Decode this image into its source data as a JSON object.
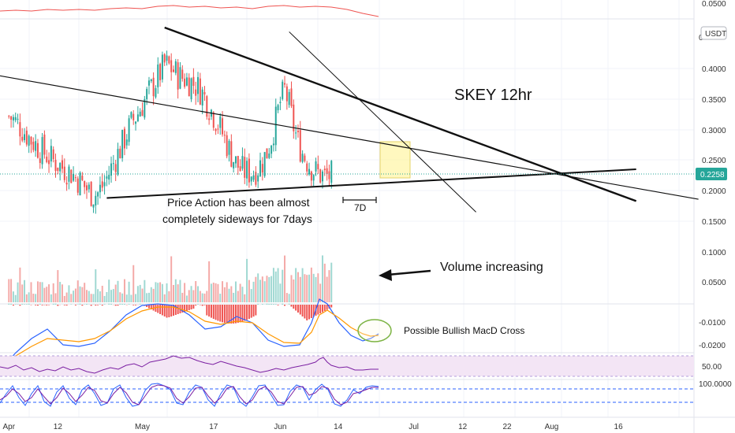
{
  "chart_data": {
    "type": "candlestick",
    "symbol_title": "SKEY 12hr",
    "currency_badge": "USDT",
    "current_price_label": "0.2258",
    "colors": {
      "up": "#26a69a",
      "down": "#ef5350",
      "volume_up": "#9fd8d2",
      "volume_down": "#f4a9a7",
      "macd": "#2962ff",
      "signal": "#ff9800",
      "rsi": "#7b1fa2",
      "rsi_band": "#f3e5f5",
      "stoch_k": "#2962ff",
      "stoch_d": "#7b1fa2",
      "box_fill": "#fff59d",
      "circle": "#7cb342",
      "price_badge": "#26a69a"
    },
    "price_axis": {
      "ticks": [
        "0.4000",
        "0.3500",
        "0.3000",
        "0.2500",
        "0.2000",
        "0.1500"
      ],
      "tick_values": [
        0.4,
        0.35,
        0.3,
        0.25,
        0.2,
        0.15
      ],
      "partial_top_label": "0",
      "ylim": [
        0.143,
        0.463
      ]
    },
    "volume_axis": {
      "ticks": [
        "0.1000",
        "0.0500"
      ]
    },
    "macd_axis": {
      "ticks": [
        "-0.0100",
        "-0.0200"
      ]
    },
    "rsi_axis": {
      "ticks": [
        "50.00"
      ]
    },
    "stoch_axis": {
      "ticks": [
        "100.0000"
      ]
    },
    "top_indicator_axis": {
      "ticks": [
        "0.0500"
      ]
    },
    "time_axis": {
      "labels": [
        "Apr",
        "12",
        "May",
        "17",
        "Jun",
        "14",
        "Jul",
        "12",
        "22",
        "Aug",
        "16"
      ],
      "label_days": [
        0,
        11,
        30,
        46,
        61,
        74,
        91,
        102,
        112,
        122,
        137
      ],
      "xlim_days": [
        -2,
        154
      ]
    },
    "annotations": {
      "sideways_line1": "Price Action has been almost",
      "sideways_line2": "completely sideways for 7days",
      "range_label": "7D",
      "volume_note": "Volume increasing",
      "macd_note": "Possible Bullish MacD Cross"
    },
    "trendlines": [
      {
        "name": "support",
        "start": [
          22,
          0.188
        ],
        "end": [
          141,
          0.235
        ]
      },
      {
        "name": "descending-resistance",
        "start": [
          35,
          0.467
        ],
        "end": [
          141,
          0.183
        ]
      },
      {
        "name": "long-descending",
        "start": [
          -2,
          0.388
        ],
        "end": [
          155,
          0.186
        ]
      },
      {
        "name": "steep-descending",
        "start": [
          63,
          0.46
        ],
        "end": [
          105,
          0.165
        ]
      }
    ],
    "close_series": [
      0.322,
      0.316,
      0.309,
      0.301,
      0.292,
      0.283,
      0.276,
      0.268,
      0.262,
      0.255,
      0.249,
      0.244,
      0.238,
      0.234,
      0.229,
      0.222,
      0.215,
      0.207,
      0.199,
      0.193,
      0.196,
      0.207,
      0.221,
      0.237,
      0.253,
      0.268,
      0.285,
      0.302,
      0.316,
      0.327,
      0.341,
      0.355,
      0.367,
      0.379,
      0.392,
      0.407,
      0.403,
      0.397,
      0.388,
      0.385,
      0.381,
      0.378,
      0.372,
      0.365,
      0.353,
      0.338,
      0.324,
      0.31,
      0.294,
      0.276,
      0.259,
      0.245,
      0.236,
      0.231,
      0.23,
      0.231,
      0.238,
      0.248,
      0.263,
      0.286,
      0.315,
      0.345,
      0.365,
      0.339,
      0.305,
      0.279,
      0.262,
      0.249,
      0.238,
      0.231,
      0.226,
      0.223,
      0.224,
      0.226
    ]
  }
}
